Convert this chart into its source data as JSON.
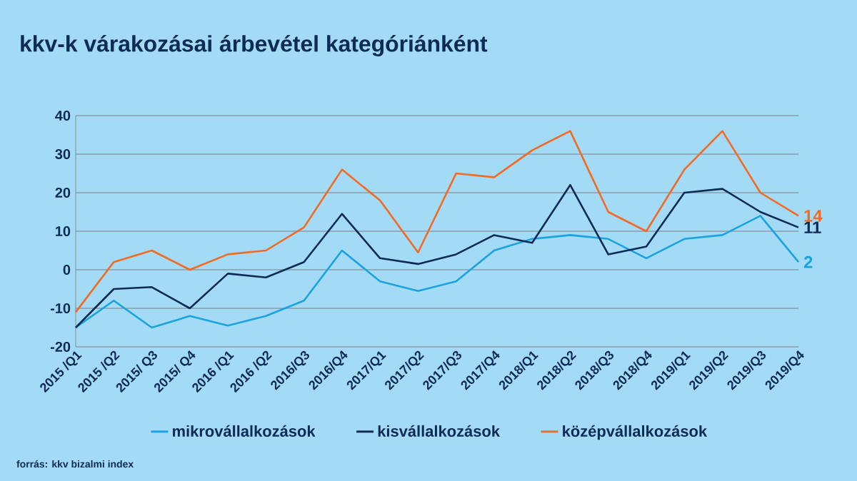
{
  "chart_data": {
    "type": "line",
    "title": "kkv-k várakozásai árbevétel kategóriánként",
    "categories": [
      "2015 /Q1",
      "2015 /Q2",
      "2015/ Q3",
      "2015/ Q4",
      "2016 /Q1",
      "2016 /Q2",
      "2016/Q3",
      "2016/Q4",
      "2017/Q1",
      "2017/Q2",
      "2017/Q3",
      "2017/Q4",
      "2018/Q1",
      "2018/Q2",
      "2018/Q3",
      "2018/Q4",
      "2019/Q1",
      "2019/Q2",
      "2019/Q3",
      "2019/Q4"
    ],
    "series": [
      {
        "name": "mikrovállalkozások",
        "color": "#1aa3e0",
        "values": [
          -15,
          -8,
          -15,
          -12,
          -14.5,
          -12,
          -8,
          5,
          -3,
          -5.5,
          -3,
          5,
          8,
          9,
          8,
          3,
          8,
          9,
          14,
          2
        ],
        "value_labels": [
          null,
          null,
          null,
          null,
          null,
          null,
          null,
          null,
          null,
          null,
          null,
          null,
          null,
          null,
          null,
          null,
          null,
          null,
          null,
          "2"
        ]
      },
      {
        "name": "kisvállalkozások",
        "color": "#0d2b55",
        "values": [
          -15,
          -5,
          -4.5,
          -10,
          -1,
          -2,
          2,
          14.5,
          3,
          1.5,
          4,
          9,
          7,
          22,
          4,
          6,
          20,
          21,
          15,
          11
        ],
        "value_labels": [
          null,
          null,
          null,
          null,
          null,
          null,
          null,
          null,
          null,
          null,
          null,
          null,
          null,
          null,
          null,
          null,
          null,
          null,
          null,
          "11"
        ]
      },
      {
        "name": "középvállalkozások",
        "color": "#f26b21",
        "values": [
          -11,
          2,
          5,
          0,
          4,
          5,
          11,
          26,
          18,
          4.5,
          25,
          24,
          31,
          36,
          15,
          10,
          26,
          36,
          20,
          14
        ],
        "value_labels": [
          null,
          null,
          null,
          null,
          null,
          null,
          null,
          null,
          null,
          null,
          null,
          null,
          null,
          null,
          null,
          null,
          null,
          null,
          null,
          "14"
        ]
      }
    ],
    "ylim": [
      -20,
      40
    ],
    "yticks": [
      -20,
      -10,
      0,
      10,
      20,
      30,
      40
    ],
    "grid": "y",
    "legend": "bottom",
    "marker": "none",
    "line_style": "solid",
    "annotations": [
      "forrás: kkv bizalmi index"
    ]
  }
}
